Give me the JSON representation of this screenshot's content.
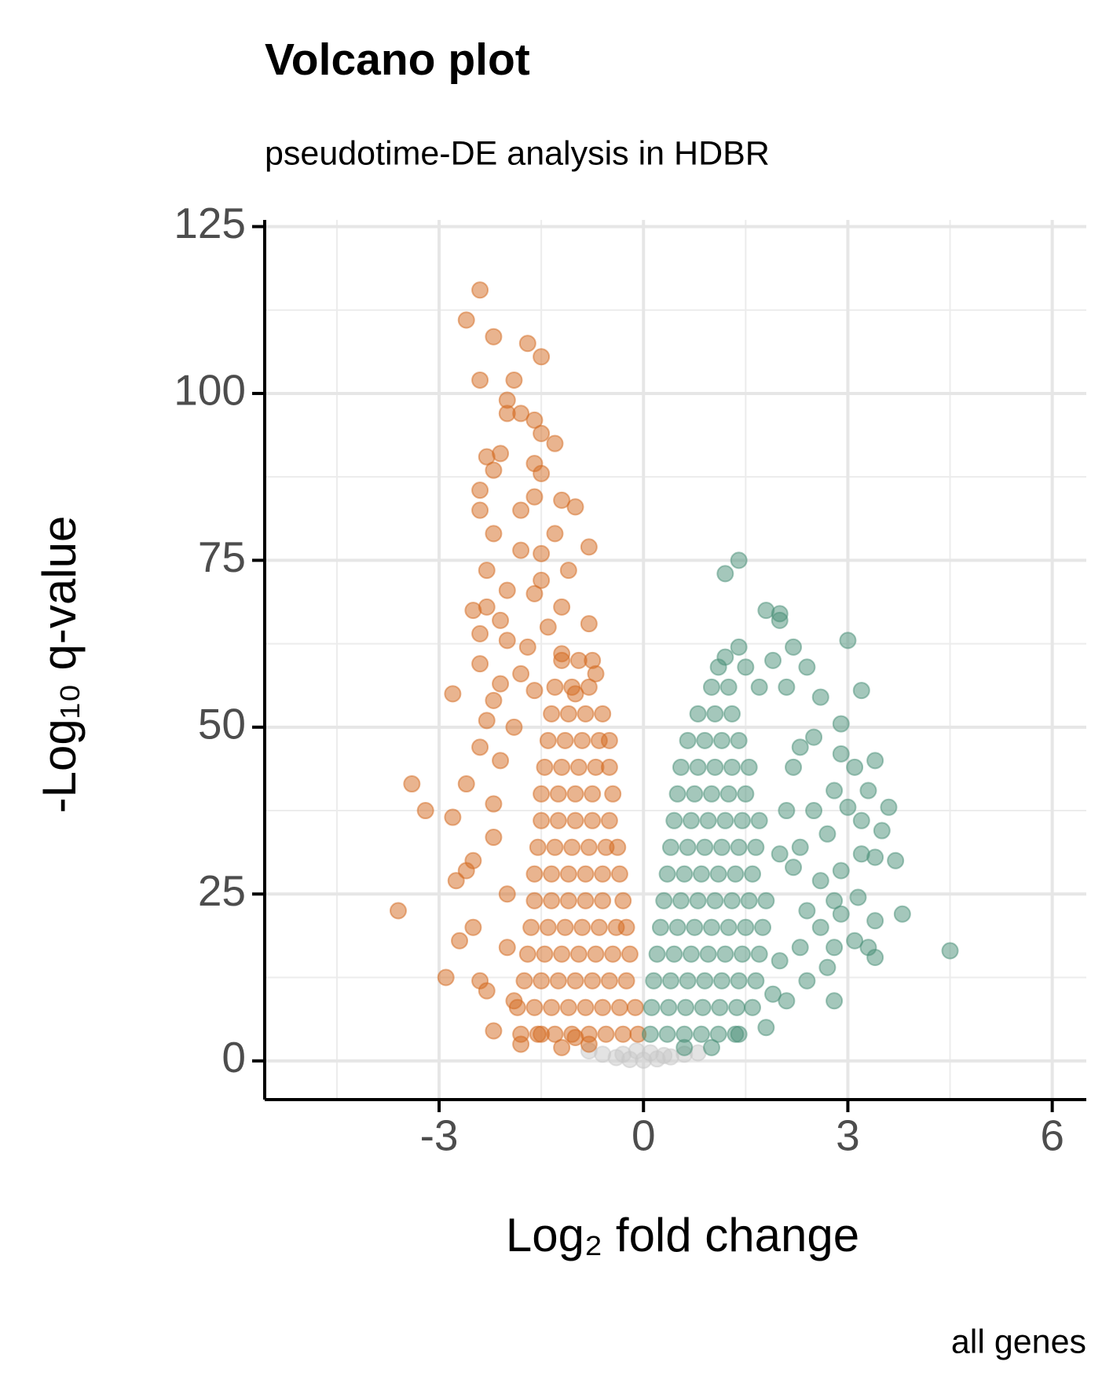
{
  "chart_data": {
    "type": "scatter",
    "title": "Volcano plot",
    "subtitle": "pseudotime-DE analysis in HDBR",
    "caption": "all genes",
    "x_label": "Log₂ fold change",
    "y_label": "-Log₁₀ q-value",
    "xlim": [
      -5.56,
      6.5
    ],
    "ylim": [
      -5.8,
      126
    ],
    "xticks": [
      {
        "value": -3,
        "label": "-3"
      },
      0,
      3,
      6
    ],
    "yticks": [
      0,
      25,
      50,
      75,
      100,
      125
    ],
    "grid": true,
    "opacity": 0.5,
    "series": [
      {
        "color": "#c8c8c8",
        "x": [
          -0.6,
          -0.4,
          -0.2,
          0,
          0.2,
          0.4,
          0.6,
          -0.8,
          0.8,
          -0.1,
          0.1,
          -0.3,
          0.3
        ],
        "values": [
          1,
          0.5,
          0.2,
          0.1,
          0.3,
          0.6,
          1,
          1.5,
          1.2,
          1.5,
          1.2,
          1,
          0.8
        ]
      },
      {
        "color": "#d4691f",
        "x": [
          -2.4,
          -2.6,
          -2.2,
          -1.7,
          -1.5,
          -2.4,
          -1.9,
          -2.0,
          -2.0,
          -1.8,
          -1.6,
          -1.5,
          -1.3,
          -2.1,
          -2.3,
          -1.6,
          -2.2,
          -1.5,
          -2.4,
          -1.2,
          -1.6,
          -2.4,
          -1.8,
          -1.0,
          -1.3,
          -2.2,
          -0.8,
          -1.8,
          -1.5,
          -2.3,
          -1.1,
          -1.5,
          -2.0,
          -2.5,
          -1.6,
          -2.3,
          -1.2,
          -2.1,
          -1.4,
          -0.8,
          -2.4,
          -2.0,
          -1.7,
          -1.2,
          -2.4,
          -1.8,
          -0.7,
          -2.1,
          -1.6,
          -2.8,
          -2.2,
          -1.0,
          -2.3,
          -1.9,
          -0.5,
          -2.4,
          -2.1,
          -3.4,
          -3.2,
          -2.6,
          -2.2,
          -2.8,
          -2.2,
          -2.5,
          -2.6,
          -2.75,
          -2.0,
          -3.6,
          -2.5,
          -2.7,
          -2.0,
          -2.4,
          -2.9,
          -2.3,
          -1.9,
          -2.2,
          -1.8,
          -1.5,
          -1.2,
          -1.0,
          -0.8,
          -1.8,
          -1.55,
          -1.3,
          -1.05,
          -0.8,
          -0.55,
          -0.3,
          -0.08,
          -1.85,
          -1.6,
          -1.35,
          -1.1,
          -0.85,
          -0.6,
          -0.35,
          -0.12,
          -1.75,
          -1.5,
          -1.25,
          -1.0,
          -0.75,
          -0.5,
          -0.25,
          -1.7,
          -1.45,
          -1.2,
          -0.95,
          -0.7,
          -0.45,
          -0.2,
          -1.65,
          -1.4,
          -1.15,
          -0.9,
          -0.65,
          -0.4,
          -0.25,
          -1.6,
          -1.35,
          -1.1,
          -0.85,
          -0.6,
          -0.3,
          -1.6,
          -1.35,
          -1.1,
          -0.85,
          -0.6,
          -0.35,
          -1.55,
          -1.3,
          -1.05,
          -0.8,
          -0.55,
          -0.38,
          -1.5,
          -1.25,
          -1.0,
          -0.75,
          -0.5,
          -1.5,
          -1.25,
          -1.0,
          -0.75,
          -0.45,
          -1.45,
          -1.2,
          -0.95,
          -0.7,
          -0.5,
          -1.4,
          -1.15,
          -0.9,
          -0.65,
          -1.35,
          -1.1,
          -0.85,
          -0.6,
          -1.3,
          -1.05,
          -0.8,
          -1.2,
          -0.95,
          -0.75
        ],
        "values": [
          115.5,
          111,
          108.5,
          107.5,
          105.5,
          102,
          102,
          99,
          97,
          97,
          96,
          94,
          92.5,
          91,
          90.5,
          89.5,
          88.5,
          88,
          85.5,
          84,
          84.5,
          82.5,
          82.5,
          83,
          79,
          79,
          77,
          76.5,
          76,
          73.5,
          73.5,
          72,
          70.5,
          67.5,
          70,
          68,
          68,
          66,
          65,
          65.5,
          64,
          63,
          62,
          61,
          59.5,
          58,
          58,
          56.5,
          55.5,
          55,
          54,
          55,
          51,
          50,
          48,
          47,
          45,
          41.5,
          37.5,
          41.5,
          38.5,
          36.5,
          33.5,
          30,
          28.5,
          27,
          25,
          22.5,
          20,
          18,
          17,
          12,
          12.5,
          10.5,
          9,
          4.5,
          2.5,
          4,
          2,
          3.5,
          2.5,
          4,
          4,
          4,
          4,
          4,
          4,
          4,
          4,
          8,
          8,
          8,
          8,
          8,
          8,
          8,
          8,
          12,
          12,
          12,
          12,
          12,
          12,
          12,
          16,
          16,
          16,
          16,
          16,
          16,
          16,
          20,
          20,
          20,
          20,
          20,
          20,
          20,
          24,
          24,
          24,
          24,
          24,
          24,
          28,
          28,
          28,
          28,
          28,
          28,
          32,
          32,
          32,
          32,
          32,
          32,
          36,
          36,
          36,
          36,
          36,
          40,
          40,
          40,
          40,
          40,
          44,
          44,
          44,
          44,
          44,
          48,
          48,
          48,
          48,
          52,
          52,
          52,
          52,
          56,
          56,
          56,
          60,
          60,
          60
        ]
      },
      {
        "color": "#4a8f78",
        "x": [
          1.4,
          1.2,
          1.8,
          2.0,
          2.0,
          3.0,
          1.4,
          2.2,
          1.2,
          1.9,
          2.4,
          1.5,
          1.1,
          2.6,
          3.2,
          1.7,
          2.1,
          2.9,
          2.5,
          2.3,
          2.9,
          3.1,
          3.4,
          2.2,
          3.3,
          2.8,
          3.6,
          3.0,
          2.5,
          2.1,
          3.2,
          3.5,
          2.7,
          2.3,
          3.2,
          3.7,
          3.4,
          2.0,
          2.9,
          2.6,
          2.2,
          2.8,
          3.15,
          2.4,
          3.8,
          3.4,
          2.9,
          2.6,
          3.1,
          3.3,
          2.3,
          2.8,
          4.5,
          3.4,
          2.0,
          2.7,
          2.4,
          1.9,
          2.1,
          2.8,
          1.8,
          1.4,
          1.0,
          0.6,
          0.1,
          0.35,
          0.6,
          0.85,
          1.1,
          1.35,
          0.12,
          0.37,
          0.62,
          0.87,
          1.12,
          1.37,
          1.6,
          0.15,
          0.4,
          0.65,
          0.9,
          1.15,
          1.4,
          1.65,
          0.2,
          0.45,
          0.7,
          0.95,
          1.2,
          1.45,
          1.7,
          0.25,
          0.5,
          0.75,
          1.0,
          1.25,
          1.5,
          1.75,
          0.3,
          0.55,
          0.8,
          1.05,
          1.3,
          1.55,
          1.8,
          0.35,
          0.6,
          0.85,
          1.1,
          1.35,
          1.6,
          0.4,
          0.65,
          0.9,
          1.15,
          1.4,
          1.65,
          0.45,
          0.7,
          0.95,
          1.2,
          1.45,
          1.7,
          0.5,
          0.75,
          1.0,
          1.25,
          1.5,
          0.55,
          0.8,
          1.05,
          1.3,
          1.55,
          0.65,
          0.9,
          1.15,
          1.4,
          0.8,
          1.05,
          1.3,
          1.0,
          1.25
        ],
        "values": [
          75,
          73,
          67.5,
          67,
          66,
          63,
          62,
          62,
          60.5,
          60,
          59,
          59,
          59,
          54.5,
          55.5,
          56,
          56,
          50.5,
          48.5,
          47,
          46,
          44,
          45,
          44,
          40.5,
          40.5,
          38,
          38,
          37.5,
          37.5,
          36,
          34.5,
          34,
          32,
          31,
          30,
          30.5,
          31,
          28.5,
          27,
          29,
          24,
          24.5,
          22.5,
          22,
          21,
          22,
          20,
          18,
          17,
          17,
          17,
          16.5,
          15.5,
          15,
          14,
          12,
          10,
          9,
          9,
          5,
          4,
          2,
          2,
          4,
          4,
          4,
          4,
          4,
          4,
          8,
          8,
          8,
          8,
          8,
          8,
          8,
          12,
          12,
          12,
          12,
          12,
          12,
          12,
          16,
          16,
          16,
          16,
          16,
          16,
          16,
          20,
          20,
          20,
          20,
          20,
          20,
          20,
          24,
          24,
          24,
          24,
          24,
          24,
          24,
          28,
          28,
          28,
          28,
          28,
          28,
          32,
          32,
          32,
          32,
          32,
          32,
          36,
          36,
          36,
          36,
          36,
          36,
          40,
          40,
          40,
          40,
          40,
          44,
          44,
          44,
          44,
          44,
          48,
          48,
          48,
          48,
          52,
          52,
          52,
          56,
          56
        ]
      }
    ]
  }
}
